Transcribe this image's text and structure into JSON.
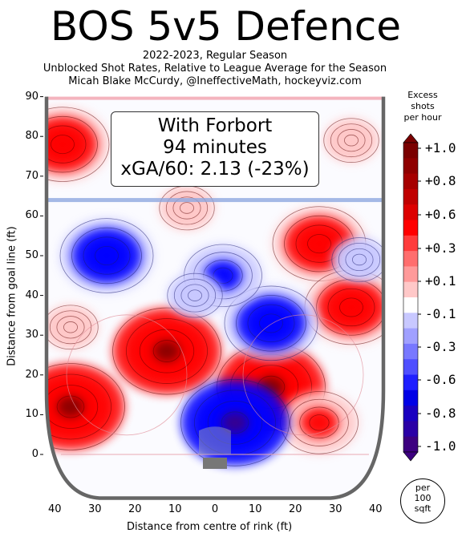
{
  "title": "BOS 5v5 Defence",
  "subtitle_lines": [
    "2022-2023, Regular Season",
    "Unblocked Shot Rates, Relative to League Average for the Season",
    "Micah Blake McCurdy, @IneffectiveMath, hockeyviz.com"
  ],
  "inset": {
    "line1": "With Forbort",
    "line2": "94 minutes",
    "line3": "xGA/60: 2.13 (-23%)"
  },
  "colorbar": {
    "title_lines": [
      "Excess",
      "shots",
      "per hour"
    ],
    "ticks": [
      "+1.0",
      "+0.8",
      "+0.6",
      "+0.3",
      "+0.1",
      "-0.1",
      "-0.3",
      "-0.6",
      "-0.8",
      "-1.0"
    ],
    "per_lines": [
      "per",
      "100",
      "sqft"
    ]
  },
  "chart_data": {
    "type": "heatmap",
    "xlabel": "Distance from centre of rink (ft)",
    "ylabel": "Distance from goal line (ft)",
    "xticks": [
      "40",
      "30",
      "20",
      "10",
      "0",
      "10",
      "20",
      "30",
      "40"
    ],
    "yticks": [
      "0",
      "10",
      "20",
      "30",
      "40",
      "50",
      "60",
      "70",
      "80",
      "90"
    ],
    "xlim": [
      -42,
      42
    ],
    "ylim": [
      -11,
      90
    ],
    "hotspots": [
      {
        "x": -12,
        "y": 26,
        "value": 1.0
      },
      {
        "x": -36,
        "y": 12,
        "value": 1.0
      },
      {
        "x": 14,
        "y": 17,
        "value": 1.0
      },
      {
        "x": 26,
        "y": 53,
        "value": 0.8
      },
      {
        "x": 34,
        "y": 37,
        "value": 0.8
      },
      {
        "x": 26,
        "y": 8,
        "value": 0.6
      },
      {
        "x": -38,
        "y": 78,
        "value": 0.8
      },
      {
        "x": -7,
        "y": 62,
        "value": 0.3
      },
      {
        "x": -36,
        "y": 32,
        "value": 0.3
      },
      {
        "x": 34,
        "y": 79,
        "value": 0.3
      },
      {
        "x": -27,
        "y": 50,
        "value": -0.8
      },
      {
        "x": 5,
        "y": 8,
        "value": -1.0
      },
      {
        "x": 14,
        "y": 33,
        "value": -0.8
      },
      {
        "x": 2,
        "y": 45,
        "value": -0.6
      },
      {
        "x": 36,
        "y": 49,
        "value": -0.3
      },
      {
        "x": -5,
        "y": 40,
        "value": -0.3
      }
    ],
    "colors": {
      "max": "#7a0000",
      "red": "#ff0000",
      "pink": "#ffc8c8",
      "white": "#ffffff",
      "lightblue": "#c8c8ff",
      "blue": "#0000ff",
      "min": "#3d0080",
      "boards": "#666666",
      "blueline": "#8fa8e0",
      "redline": "#f4b4be"
    }
  }
}
